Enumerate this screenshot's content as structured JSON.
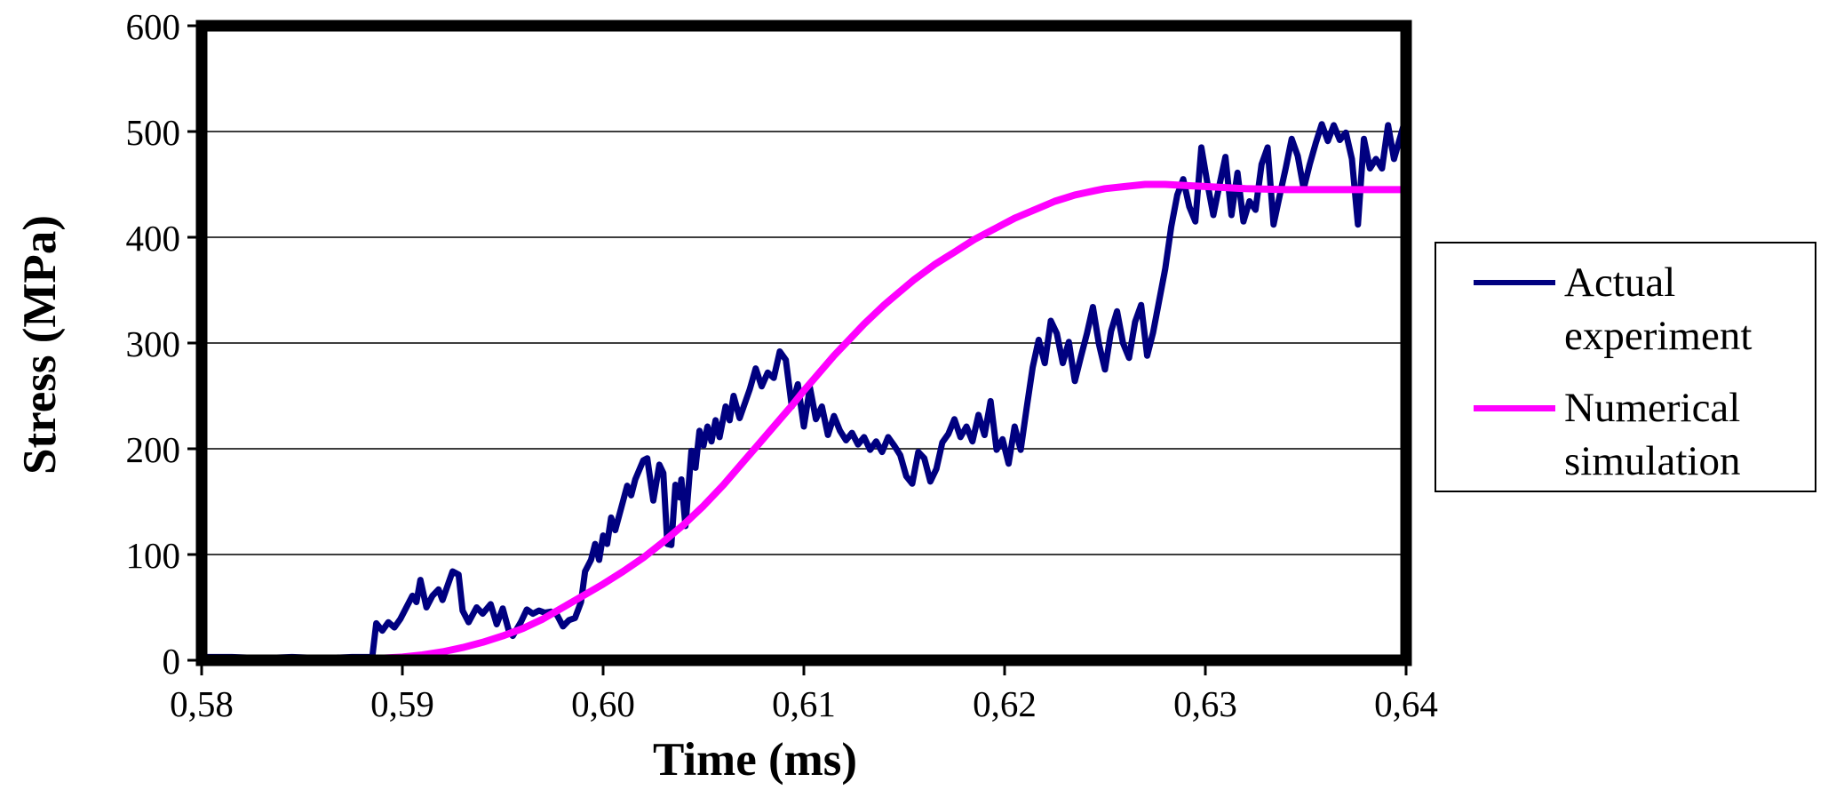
{
  "figure": {
    "background_color": "#ffffff",
    "plot_background_color": "#ffffff",
    "frame_color": "#000000",
    "gridline_color": "#3d3d3d"
  },
  "chart_data": {
    "type": "line",
    "title": "",
    "xlabel": "Time (ms)",
    "ylabel": "Stress (MPa)",
    "xlim": [
      0.58,
      0.64
    ],
    "ylim": [
      0,
      600
    ],
    "grid": "horizontal",
    "decimal_separator": ",",
    "x_ticks": [
      0.58,
      0.59,
      0.6,
      0.61,
      0.62,
      0.63,
      0.64
    ],
    "x_tick_labels": [
      "0,58",
      "0,59",
      "0,60",
      "0,61",
      "0,62",
      "0,63",
      "0,64"
    ],
    "y_ticks": [
      0,
      100,
      200,
      300,
      400,
      500,
      600
    ],
    "y_tick_labels": [
      "0",
      "100",
      "200",
      "300",
      "400",
      "500",
      "600"
    ],
    "legend": {
      "position": "right-outside",
      "border_color": "#000000",
      "background_color": "#ffffff"
    },
    "series": [
      {
        "name": "Actual experiment",
        "label": "Actual\nexperiment",
        "color": "#000080",
        "line_width": 7,
        "points": [
          [
            0.58,
            3
          ],
          [
            0.5815,
            3
          ],
          [
            0.583,
            2
          ],
          [
            0.5845,
            3
          ],
          [
            0.586,
            2
          ],
          [
            0.5875,
            3
          ],
          [
            0.5885,
            3
          ],
          [
            0.5887,
            35
          ],
          [
            0.589,
            28
          ],
          [
            0.5893,
            36
          ],
          [
            0.5896,
            31
          ],
          [
            0.5899,
            39
          ],
          [
            0.5902,
            50
          ],
          [
            0.5905,
            61
          ],
          [
            0.5907,
            55
          ],
          [
            0.5909,
            76
          ],
          [
            0.5912,
            50
          ],
          [
            0.5915,
            61
          ],
          [
            0.5918,
            67
          ],
          [
            0.592,
            57
          ],
          [
            0.5925,
            84
          ],
          [
            0.5928,
            81
          ],
          [
            0.593,
            47
          ],
          [
            0.5933,
            36
          ],
          [
            0.5937,
            50
          ],
          [
            0.594,
            44
          ],
          [
            0.5944,
            53
          ],
          [
            0.5947,
            34
          ],
          [
            0.595,
            49
          ],
          [
            0.5953,
            28
          ],
          [
            0.5955,
            23
          ],
          [
            0.5959,
            36
          ],
          [
            0.5962,
            48
          ],
          [
            0.5965,
            44
          ],
          [
            0.5968,
            47
          ],
          [
            0.5971,
            45
          ],
          [
            0.5974,
            46
          ],
          [
            0.5977,
            43
          ],
          [
            0.598,
            32
          ],
          [
            0.5983,
            38
          ],
          [
            0.5986,
            40
          ],
          [
            0.5989,
            55
          ],
          [
            0.5991,
            84
          ],
          [
            0.5994,
            95
          ],
          [
            0.5996,
            110
          ],
          [
            0.5998,
            95
          ],
          [
            0.6,
            118
          ],
          [
            0.6002,
            110
          ],
          [
            0.6004,
            135
          ],
          [
            0.6006,
            123
          ],
          [
            0.6008,
            137
          ],
          [
            0.6012,
            165
          ],
          [
            0.6014,
            156
          ],
          [
            0.6016,
            171
          ],
          [
            0.602,
            189
          ],
          [
            0.6022,
            191
          ],
          [
            0.6025,
            151
          ],
          [
            0.6028,
            185
          ],
          [
            0.603,
            177
          ],
          [
            0.6032,
            110
          ],
          [
            0.6034,
            109
          ],
          [
            0.6036,
            166
          ],
          [
            0.6038,
            154
          ],
          [
            0.6039,
            171
          ],
          [
            0.6041,
            127
          ],
          [
            0.6044,
            198
          ],
          [
            0.6046,
            182
          ],
          [
            0.6048,
            217
          ],
          [
            0.605,
            203
          ],
          [
            0.6052,
            221
          ],
          [
            0.6054,
            207
          ],
          [
            0.6056,
            227
          ],
          [
            0.6058,
            211
          ],
          [
            0.6061,
            240
          ],
          [
            0.6063,
            227
          ],
          [
            0.6065,
            250
          ],
          [
            0.6068,
            229
          ],
          [
            0.6073,
            256
          ],
          [
            0.6076,
            276
          ],
          [
            0.6079,
            259
          ],
          [
            0.6082,
            272
          ],
          [
            0.6085,
            267
          ],
          [
            0.6088,
            292
          ],
          [
            0.6091,
            284
          ],
          [
            0.6094,
            240
          ],
          [
            0.6097,
            261
          ],
          [
            0.61,
            221
          ],
          [
            0.6103,
            258
          ],
          [
            0.6106,
            228
          ],
          [
            0.6109,
            240
          ],
          [
            0.6112,
            213
          ],
          [
            0.6115,
            231
          ],
          [
            0.6118,
            217
          ],
          [
            0.6121,
            208
          ],
          [
            0.6124,
            215
          ],
          [
            0.6127,
            204
          ],
          [
            0.613,
            211
          ],
          [
            0.6133,
            199
          ],
          [
            0.6136,
            207
          ],
          [
            0.6139,
            197
          ],
          [
            0.6142,
            211
          ],
          [
            0.6145,
            203
          ],
          [
            0.6148,
            194
          ],
          [
            0.6151,
            174
          ],
          [
            0.6154,
            167
          ],
          [
            0.6157,
            197
          ],
          [
            0.616,
            191
          ],
          [
            0.6163,
            169
          ],
          [
            0.6166,
            181
          ],
          [
            0.6169,
            206
          ],
          [
            0.6172,
            214
          ],
          [
            0.6175,
            228
          ],
          [
            0.6178,
            211
          ],
          [
            0.6181,
            221
          ],
          [
            0.6184,
            207
          ],
          [
            0.6187,
            232
          ],
          [
            0.619,
            213
          ],
          [
            0.6193,
            245
          ],
          [
            0.6196,
            199
          ],
          [
            0.6199,
            209
          ],
          [
            0.6202,
            186
          ],
          [
            0.6205,
            221
          ],
          [
            0.6208,
            199
          ],
          [
            0.6211,
            239
          ],
          [
            0.6214,
            277
          ],
          [
            0.6217,
            303
          ],
          [
            0.622,
            281
          ],
          [
            0.6223,
            321
          ],
          [
            0.6226,
            309
          ],
          [
            0.6229,
            281
          ],
          [
            0.6232,
            301
          ],
          [
            0.6235,
            264
          ],
          [
            0.6238,
            287
          ],
          [
            0.6241,
            309
          ],
          [
            0.6244,
            334
          ],
          [
            0.6247,
            299
          ],
          [
            0.625,
            275
          ],
          [
            0.6253,
            311
          ],
          [
            0.6256,
            330
          ],
          [
            0.6259,
            300
          ],
          [
            0.6262,
            286
          ],
          [
            0.6265,
            320
          ],
          [
            0.6268,
            336
          ],
          [
            0.6271,
            288
          ],
          [
            0.6274,
            310
          ],
          [
            0.6277,
            340
          ],
          [
            0.628,
            370
          ],
          [
            0.6283,
            410
          ],
          [
            0.6286,
            440
          ],
          [
            0.6289,
            455
          ],
          [
            0.6292,
            429
          ],
          [
            0.6295,
            415
          ],
          [
            0.6298,
            485
          ],
          [
            0.6301,
            451
          ],
          [
            0.6304,
            421
          ],
          [
            0.6307,
            449
          ],
          [
            0.631,
            476
          ],
          [
            0.6313,
            421
          ],
          [
            0.6316,
            461
          ],
          [
            0.6319,
            415
          ],
          [
            0.6322,
            434
          ],
          [
            0.6325,
            426
          ],
          [
            0.6328,
            469
          ],
          [
            0.6331,
            485
          ],
          [
            0.6334,
            412
          ],
          [
            0.6337,
            439
          ],
          [
            0.634,
            465
          ],
          [
            0.6343,
            493
          ],
          [
            0.6346,
            477
          ],
          [
            0.6349,
            446
          ],
          [
            0.6352,
            469
          ],
          [
            0.6355,
            489
          ],
          [
            0.6358,
            507
          ],
          [
            0.6361,
            491
          ],
          [
            0.6364,
            506
          ],
          [
            0.6367,
            492
          ],
          [
            0.637,
            499
          ],
          [
            0.6373,
            474
          ],
          [
            0.6376,
            412
          ],
          [
            0.6379,
            493
          ],
          [
            0.6382,
            465
          ],
          [
            0.6385,
            474
          ],
          [
            0.6388,
            465
          ],
          [
            0.6391,
            506
          ],
          [
            0.6394,
            474
          ],
          [
            0.6397,
            494
          ],
          [
            0.64,
            514
          ]
        ]
      },
      {
        "name": "Numerical simulation",
        "label": "Numerical\nsimulation",
        "color": "#ff00ff",
        "line_width": 8,
        "points": [
          [
            0.58,
            0
          ],
          [
            0.582,
            0
          ],
          [
            0.584,
            0
          ],
          [
            0.586,
            0
          ],
          [
            0.588,
            1
          ],
          [
            0.589,
            2
          ],
          [
            0.59,
            3
          ],
          [
            0.591,
            5
          ],
          [
            0.592,
            8
          ],
          [
            0.593,
            12
          ],
          [
            0.594,
            17
          ],
          [
            0.595,
            23
          ],
          [
            0.596,
            30
          ],
          [
            0.597,
            39
          ],
          [
            0.598,
            50
          ],
          [
            0.599,
            61
          ],
          [
            0.6,
            72
          ],
          [
            0.601,
            84
          ],
          [
            0.602,
            97
          ],
          [
            0.603,
            112
          ],
          [
            0.6035,
            120
          ],
          [
            0.604,
            128
          ],
          [
            0.6045,
            137
          ],
          [
            0.605,
            146
          ],
          [
            0.6055,
            156
          ],
          [
            0.606,
            166
          ],
          [
            0.6065,
            177
          ],
          [
            0.607,
            188
          ],
          [
            0.6075,
            199
          ],
          [
            0.608,
            210
          ],
          [
            0.6085,
            221
          ],
          [
            0.609,
            232
          ],
          [
            0.6095,
            243
          ],
          [
            0.61,
            255
          ],
          [
            0.6105,
            266
          ],
          [
            0.611,
            277
          ],
          [
            0.6115,
            288
          ],
          [
            0.612,
            298
          ],
          [
            0.6125,
            308
          ],
          [
            0.613,
            318
          ],
          [
            0.6135,
            327
          ],
          [
            0.614,
            336
          ],
          [
            0.6145,
            344
          ],
          [
            0.615,
            352
          ],
          [
            0.6155,
            360
          ],
          [
            0.616,
            367
          ],
          [
            0.6165,
            374
          ],
          [
            0.617,
            380
          ],
          [
            0.6175,
            386
          ],
          [
            0.618,
            392
          ],
          [
            0.6185,
            398
          ],
          [
            0.619,
            403
          ],
          [
            0.6195,
            408
          ],
          [
            0.62,
            413
          ],
          [
            0.6205,
            418
          ],
          [
            0.621,
            422
          ],
          [
            0.6215,
            426
          ],
          [
            0.622,
            430
          ],
          [
            0.6225,
            434
          ],
          [
            0.623,
            437
          ],
          [
            0.6235,
            440
          ],
          [
            0.624,
            442
          ],
          [
            0.6245,
            444
          ],
          [
            0.625,
            446
          ],
          [
            0.626,
            448
          ],
          [
            0.627,
            450
          ],
          [
            0.628,
            450
          ],
          [
            0.629,
            449
          ],
          [
            0.63,
            448
          ],
          [
            0.631,
            447
          ],
          [
            0.632,
            446
          ],
          [
            0.634,
            445
          ],
          [
            0.636,
            445
          ],
          [
            0.638,
            445
          ],
          [
            0.64,
            445
          ]
        ]
      }
    ]
  }
}
